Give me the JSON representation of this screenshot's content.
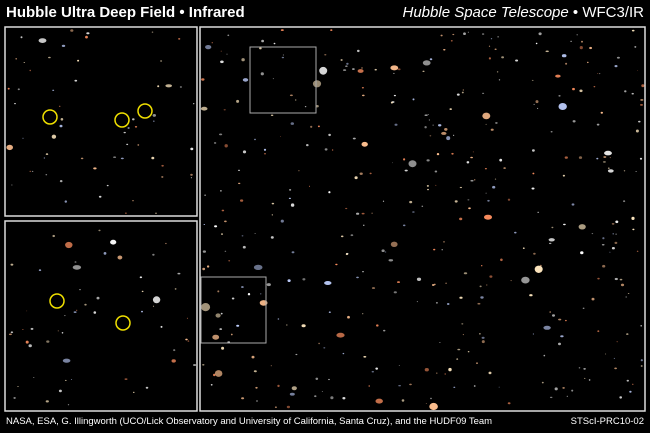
{
  "header": {
    "title": "Hubble Ultra Deep Field • Infrared",
    "telescope": "Hubble Space Telescope",
    "instrument": "• WFC3/IR"
  },
  "footer": {
    "credit": "NASA, ESA, G. Illingworth (UCO/Lick Observatory and University of California, Santa Cruz), and the HUDF09 Team",
    "id": "STScI-PRC10-02"
  }
}
